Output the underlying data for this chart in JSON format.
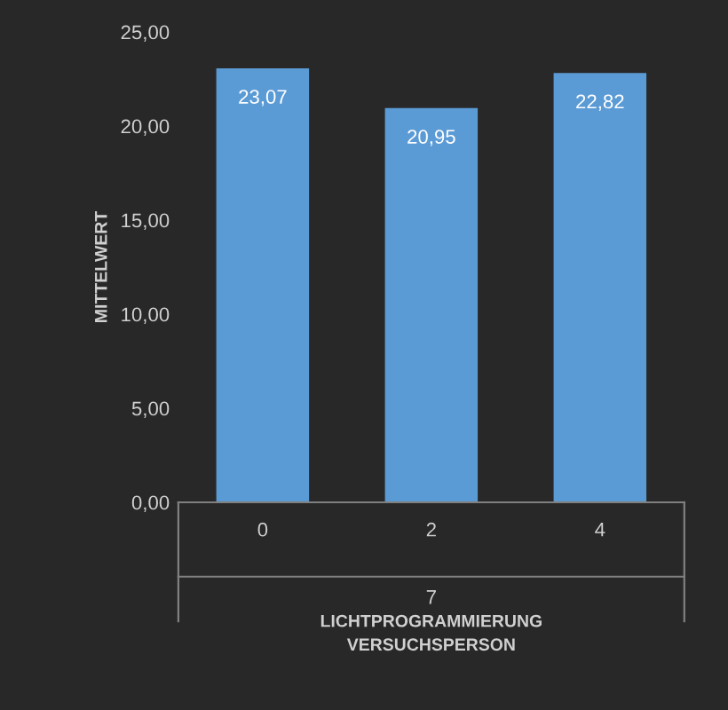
{
  "chart_data": {
    "type": "bar",
    "ylabel": "MITTELWERT",
    "xlabel": "LICHTPROGRAMMIERUNG\nVERSUCHSPERSON",
    "categories": [
      "0",
      "2",
      "4"
    ],
    "values": [
      23.07,
      20.95,
      22.82
    ],
    "value_labels": [
      "23,07",
      "20,95",
      "22,82"
    ],
    "color": "#5b9bd5",
    "ylim": [
      0,
      25
    ],
    "yticks": [
      {
        "value": 0,
        "label": "0,00"
      },
      {
        "value": 5,
        "label": "5,00"
      },
      {
        "value": 10,
        "label": "10,00"
      },
      {
        "value": 15,
        "label": "15,00"
      },
      {
        "value": 20,
        "label": "20,00"
      },
      {
        "value": 25,
        "label": "25,00"
      }
    ],
    "annotations": [
      "7"
    ],
    "grid": false,
    "legend": false
  }
}
